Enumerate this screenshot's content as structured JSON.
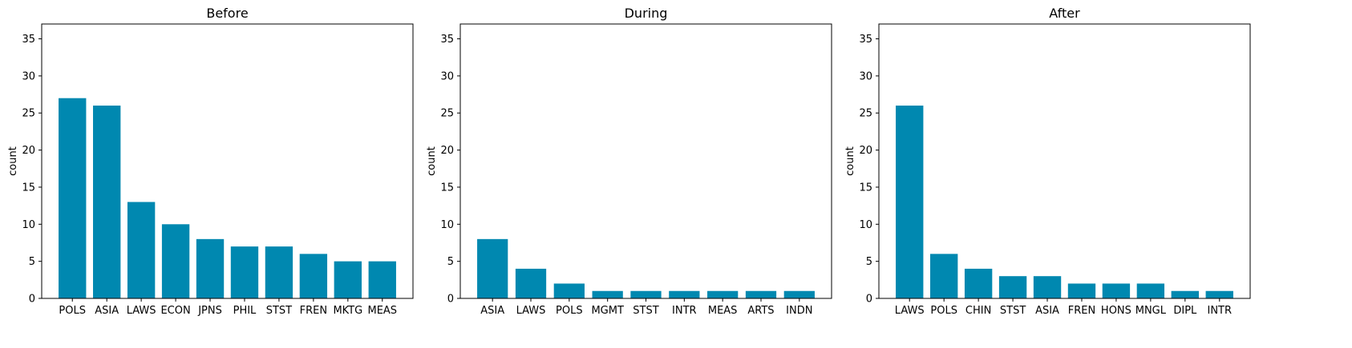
{
  "chart_data": [
    {
      "type": "bar",
      "title": "Before",
      "xlabel": "",
      "ylabel": "count",
      "ylim": [
        0,
        37
      ],
      "yticks": [
        0,
        5,
        10,
        15,
        20,
        25,
        30,
        35
      ],
      "categories": [
        "POLS",
        "ASIA",
        "LAWS",
        "ECON",
        "JPNS",
        "PHIL",
        "STST",
        "FREN",
        "MKTG",
        "MEAS"
      ],
      "values": [
        27,
        26,
        13,
        10,
        8,
        7,
        7,
        6,
        5,
        5
      ],
      "bar_color": "#0088b0"
    },
    {
      "type": "bar",
      "title": "During",
      "xlabel": "",
      "ylabel": "count",
      "ylim": [
        0,
        37
      ],
      "yticks": [
        0,
        5,
        10,
        15,
        20,
        25,
        30,
        35
      ],
      "categories": [
        "ASIA",
        "LAWS",
        "POLS",
        "MGMT",
        "STST",
        "INTR",
        "MEAS",
        "ARTS",
        "INDN"
      ],
      "values": [
        8,
        4,
        2,
        1,
        1,
        1,
        1,
        1,
        1
      ],
      "bar_color": "#0088b0"
    },
    {
      "type": "bar",
      "title": "After",
      "xlabel": "",
      "ylabel": "count",
      "ylim": [
        0,
        37
      ],
      "yticks": [
        0,
        5,
        10,
        15,
        20,
        25,
        30,
        35
      ],
      "categories": [
        "LAWS",
        "POLS",
        "CHIN",
        "STST",
        "ASIA",
        "FREN",
        "HONS",
        "MNGL",
        "DIPL",
        "INTR"
      ],
      "values": [
        26,
        6,
        4,
        3,
        3,
        2,
        2,
        2,
        1,
        1
      ],
      "bar_color": "#0088b0"
    }
  ]
}
